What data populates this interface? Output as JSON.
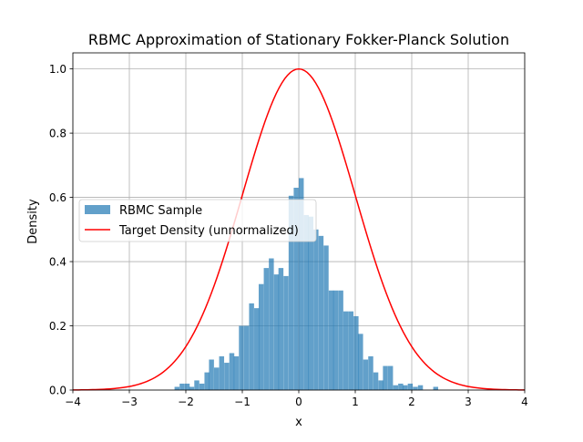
{
  "chart_data": {
    "type": "bar+line",
    "title": "RBMC Approximation of Stationary Fokker-Planck Solution",
    "xlabel": "x",
    "ylabel": "Density",
    "xlim": [
      -4.0,
      4.0
    ],
    "ylim": [
      0.0,
      1.05
    ],
    "grid": true,
    "legend_position": "center-left",
    "x_ticks": [
      -4,
      -3,
      -2,
      -1,
      0,
      1,
      2,
      3,
      4
    ],
    "x_tick_labels": [
      "−4",
      "−3",
      "−2",
      "−1",
      "0",
      "1",
      "2",
      "3",
      "4"
    ],
    "y_ticks": [
      0.0,
      0.2,
      0.4,
      0.6,
      0.8,
      1.0
    ],
    "y_tick_labels": [
      "0.0",
      "0.2",
      "0.4",
      "0.6",
      "0.8",
      "1.0"
    ],
    "histogram": {
      "name": "RBMC Sample",
      "color": "#1f77b4",
      "opacity": 0.7,
      "bin_width": 0.088,
      "bins": [
        {
          "x0": -2.2,
          "value": 0.01
        },
        {
          "x0": -2.11,
          "value": 0.02
        },
        {
          "x0": -2.02,
          "value": 0.02
        },
        {
          "x0": -1.94,
          "value": 0.01
        },
        {
          "x0": -1.85,
          "value": 0.03
        },
        {
          "x0": -1.76,
          "value": 0.02
        },
        {
          "x0": -1.67,
          "value": 0.055
        },
        {
          "x0": -1.59,
          "value": 0.095
        },
        {
          "x0": -1.5,
          "value": 0.07
        },
        {
          "x0": -1.41,
          "value": 0.105
        },
        {
          "x0": -1.32,
          "value": 0.085
        },
        {
          "x0": -1.23,
          "value": 0.115
        },
        {
          "x0": -1.15,
          "value": 0.105
        },
        {
          "x0": -1.06,
          "value": 0.2
        },
        {
          "x0": -0.97,
          "value": 0.2
        },
        {
          "x0": -0.88,
          "value": 0.27
        },
        {
          "x0": -0.79,
          "value": 0.255
        },
        {
          "x0": -0.71,
          "value": 0.33
        },
        {
          "x0": -0.62,
          "value": 0.38
        },
        {
          "x0": -0.53,
          "value": 0.41
        },
        {
          "x0": -0.44,
          "value": 0.36
        },
        {
          "x0": -0.36,
          "value": 0.38
        },
        {
          "x0": -0.27,
          "value": 0.355
        },
        {
          "x0": -0.18,
          "value": 0.605
        },
        {
          "x0": -0.09,
          "value": 0.63
        },
        {
          "x0": 0.0,
          "value": 0.66
        },
        {
          "x0": 0.09,
          "value": 0.545
        },
        {
          "x0": 0.17,
          "value": 0.54
        },
        {
          "x0": 0.26,
          "value": 0.5
        },
        {
          "x0": 0.35,
          "value": 0.48
        },
        {
          "x0": 0.44,
          "value": 0.45
        },
        {
          "x0": 0.53,
          "value": 0.31
        },
        {
          "x0": 0.61,
          "value": 0.31
        },
        {
          "x0": 0.7,
          "value": 0.31
        },
        {
          "x0": 0.79,
          "value": 0.245
        },
        {
          "x0": 0.88,
          "value": 0.245
        },
        {
          "x0": 0.97,
          "value": 0.23
        },
        {
          "x0": 1.05,
          "value": 0.175
        },
        {
          "x0": 1.14,
          "value": 0.095
        },
        {
          "x0": 1.23,
          "value": 0.105
        },
        {
          "x0": 1.32,
          "value": 0.055
        },
        {
          "x0": 1.41,
          "value": 0.03
        },
        {
          "x0": 1.49,
          "value": 0.075
        },
        {
          "x0": 1.58,
          "value": 0.075
        },
        {
          "x0": 1.67,
          "value": 0.015
        },
        {
          "x0": 1.76,
          "value": 0.02
        },
        {
          "x0": 1.84,
          "value": 0.015
        },
        {
          "x0": 1.93,
          "value": 0.02
        },
        {
          "x0": 2.02,
          "value": 0.01
        },
        {
          "x0": 2.11,
          "value": 0.015
        },
        {
          "x0": 2.38,
          "value": 0.01
        }
      ]
    },
    "curve": {
      "name": "Target Density (unnormalized)",
      "color": "#ff0000",
      "formula": "exp(-x^2/2)",
      "x_range": [
        -4.0,
        4.0
      ],
      "samples": 161
    }
  }
}
